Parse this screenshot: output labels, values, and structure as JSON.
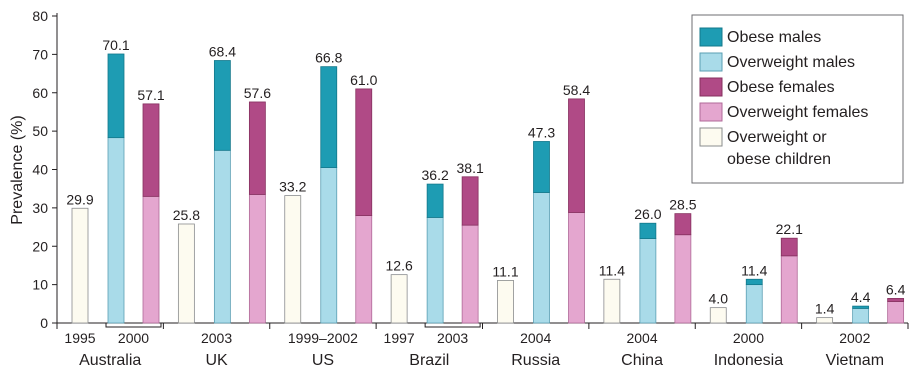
{
  "chart_data": {
    "type": "bar",
    "ylabel": "Prevalence (%)",
    "ylim": [
      0,
      80
    ],
    "yticks": [
      0,
      10,
      20,
      30,
      40,
      50,
      60,
      70,
      80
    ],
    "colors": {
      "obese_males": "#1e9cb3",
      "overweight_males": "#a9dbe9",
      "obese_females": "#b04a86",
      "overweight_females": "#e4a6cf",
      "children": "#fdfbf0"
    },
    "legend": {
      "position": "top-right",
      "entries": [
        {
          "key": "obese_males",
          "label": "Obese males"
        },
        {
          "key": "overweight_males",
          "label": "Overweight males"
        },
        {
          "key": "obese_females",
          "label": "Obese females"
        },
        {
          "key": "overweight_females",
          "label": "Overweight females"
        },
        {
          "key": "children",
          "label": "Overweight or obese children"
        }
      ]
    },
    "groups": [
      {
        "country": "Australia",
        "child_year": "1995",
        "adult_year": "2000",
        "adult_bracket": true,
        "children": 29.9,
        "males_overweight": 48.3,
        "males_total": 70.1,
        "females_overweight": 33.0,
        "females_total": 57.1
      },
      {
        "country": "UK",
        "child_year": "",
        "adult_year": "2003",
        "adult_bracket": false,
        "children": 25.8,
        "males_overweight": 45.0,
        "males_total": 68.4,
        "females_overweight": 33.5,
        "females_total": 57.6
      },
      {
        "country": "US",
        "child_year": "",
        "adult_year": "1999–2002",
        "adult_bracket": false,
        "children": 33.2,
        "males_overweight": 40.5,
        "males_total": 66.8,
        "females_overweight": 28.0,
        "females_total": 61.0
      },
      {
        "country": "Brazil",
        "child_year": "1997",
        "adult_year": "2003",
        "adult_bracket": true,
        "children": 12.6,
        "males_overweight": 27.5,
        "males_total": 36.2,
        "females_overweight": 25.5,
        "females_total": 38.1
      },
      {
        "country": "Russia",
        "child_year": "",
        "adult_year": "2004",
        "adult_bracket": false,
        "children": 11.1,
        "males_overweight": 34.0,
        "males_total": 47.3,
        "females_overweight": 28.8,
        "females_total": 58.4
      },
      {
        "country": "China",
        "child_year": "",
        "adult_year": "2004",
        "adult_bracket": false,
        "children": 11.4,
        "males_overweight": 22.0,
        "males_total": 26.0,
        "females_overweight": 23.0,
        "females_total": 28.5
      },
      {
        "country": "Indonesia",
        "child_year": "",
        "adult_year": "2000",
        "adult_bracket": false,
        "children": 4.0,
        "males_overweight": 10.0,
        "males_total": 11.4,
        "females_overweight": 17.5,
        "females_total": 22.1
      },
      {
        "country": "Vietnam",
        "child_year": "",
        "adult_year": "2002",
        "adult_bracket": false,
        "children": 1.4,
        "males_overweight": 3.8,
        "males_total": 4.4,
        "females_overweight": 5.6,
        "females_total": 6.4
      }
    ]
  }
}
